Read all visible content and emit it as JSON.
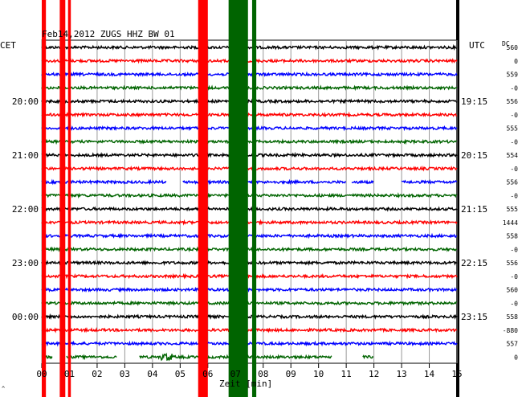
{
  "chart_data": {
    "type": "line",
    "title": "Feb14,2012  ZUGS HHZ BW 01",
    "xlabel": "Zeit [min]",
    "left_axis_label": "CET",
    "right_axis_label": "UTC",
    "dc_label": "DC",
    "x_range": [
      0,
      15
    ],
    "x_ticks": [
      "00",
      "01",
      "02",
      "03",
      "04",
      "05",
      "06",
      "07",
      "08",
      "09",
      "10",
      "11",
      "12",
      "13",
      "14",
      "15"
    ],
    "grid": true,
    "left_time_labels": [
      "20:00",
      "21:00",
      "22:00",
      "23:00",
      "00:00"
    ],
    "right_time_labels": [
      "19:15",
      "20:15",
      "21:15",
      "22:15",
      "23:15"
    ],
    "dc_offsets": [
      "560",
      "0",
      "559",
      "-0",
      "556",
      "-0",
      "555",
      "-0",
      "554",
      "-0",
      "556",
      "-0",
      "555",
      "1444",
      "558",
      "-0",
      "556",
      "-0",
      "560",
      "-0",
      "558",
      "-880",
      "557",
      "0"
    ],
    "trace_colors": [
      "#000000",
      "#ff0000",
      "#0000ff",
      "#006400"
    ],
    "series": [
      {
        "values_note": "24 helicorder traces, 15 min each, colors cycle black/red/blue/green"
      }
    ],
    "events": [
      {
        "color": "#ff0000",
        "from_min": 0.0,
        "to_min": 0.15
      },
      {
        "color": "#ff0000",
        "from_min": 0.65,
        "to_min": 0.85
      },
      {
        "color": "#ff0000",
        "from_min": 0.95,
        "to_min": 1.05
      },
      {
        "color": "#ff0000",
        "from_min": 5.65,
        "to_min": 6.0
      },
      {
        "color": "#006400",
        "from_min": 6.75,
        "to_min": 7.45
      },
      {
        "color": "#006400",
        "from_min": 7.6,
        "to_min": 7.75
      }
    ],
    "gaps": [
      {
        "trace": 10,
        "from_min": 4.5,
        "to_min": 5.1
      },
      {
        "trace": 10,
        "from_min": 11.0,
        "to_min": 11.2
      },
      {
        "trace": 10,
        "from_min": 12.0,
        "to_min": 13.0
      },
      {
        "trace": 23,
        "from_min": 0.4,
        "to_min": 0.9
      },
      {
        "trace": 23,
        "from_min": 2.7,
        "to_min": 3.5
      },
      {
        "trace": 23,
        "from_min": 10.5,
        "to_min": 11.6
      },
      {
        "trace": 23,
        "from_min": 12.0,
        "to_min": 15.0
      }
    ]
  }
}
